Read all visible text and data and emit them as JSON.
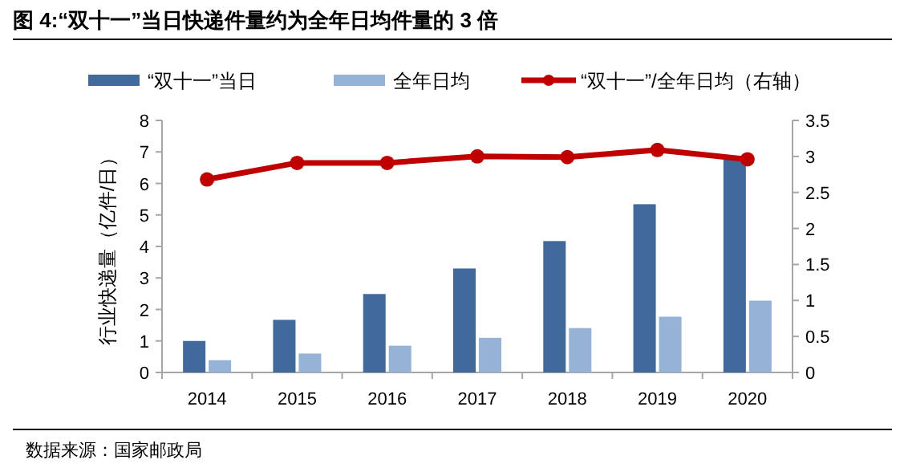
{
  "chart_data": {
    "type": "bar",
    "title": "图 4:“双十一”当日快递件量约为全年日均件量的 3 倍",
    "ylabel": "行业快递量（亿件/日）",
    "categories": [
      "2014",
      "2015",
      "2016",
      "2017",
      "2018",
      "2019",
      "2020"
    ],
    "series": [
      {
        "name": "“双十一”当日",
        "color": "#41699c",
        "values": [
          1.0,
          1.67,
          2.49,
          3.3,
          4.17,
          5.34,
          6.8
        ]
      },
      {
        "name": "全年日均",
        "color": "#94b3d7",
        "values": [
          0.39,
          0.6,
          0.85,
          1.1,
          1.41,
          1.77,
          2.28
        ]
      },
      {
        "name": "“双十一”/全年日均（右轴）",
        "type": "line",
        "axis": "y2",
        "color": "#c00000",
        "marker": "circle",
        "values": [
          2.68,
          2.91,
          2.91,
          3.0,
          2.99,
          3.09,
          2.96
        ]
      }
    ],
    "ylim": [
      0,
      8
    ],
    "yticks": [
      0,
      1,
      2,
      3,
      4,
      5,
      6,
      7,
      8
    ],
    "y2lim": [
      0,
      3.5
    ],
    "y2ticks": [
      0,
      0.5,
      1,
      1.5,
      2,
      2.5,
      3,
      3.5
    ],
    "legend": "top",
    "grid": false,
    "annotations": [
      "数据来源：国家邮政局"
    ]
  }
}
